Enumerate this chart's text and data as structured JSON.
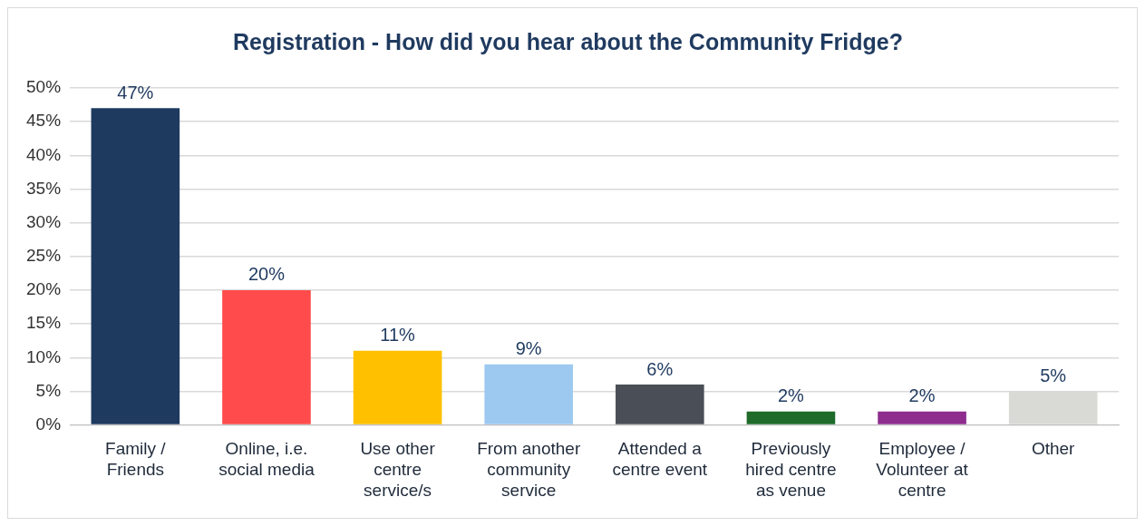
{
  "chart_data": {
    "type": "bar",
    "title": "Registration - How did you hear about the Community Fridge?",
    "categories": [
      "Family / Friends",
      "Online, i.e. social media",
      "Use other centre service/s",
      "From another community service",
      "Attended a centre event",
      "Previously hired centre as venue",
      "Employee / Volunteer at centre",
      "Other"
    ],
    "values": [
      47,
      20,
      11,
      9,
      6,
      2,
      2,
      5
    ],
    "value_labels": [
      "47%",
      "20%",
      "11%",
      "9%",
      "6%",
      "2%",
      "2%",
      "5%"
    ],
    "colors": [
      "#1f3a5f",
      "#ff4b4b",
      "#ffc000",
      "#9dc9f0",
      "#4a4f57",
      "#1e6b2a",
      "#8e2d8e",
      "#d9d9d6"
    ],
    "ylim": [
      0,
      50
    ],
    "yticks": [
      {
        "value": 0,
        "label": "0%"
      },
      {
        "value": 5,
        "label": "5%"
      },
      {
        "value": 10,
        "label": "10%"
      },
      {
        "value": 15,
        "label": "15%"
      },
      {
        "value": 20,
        "label": "20%"
      },
      {
        "value": 25,
        "label": "25%"
      },
      {
        "value": 30,
        "label": "30%"
      },
      {
        "value": 35,
        "label": "35%"
      },
      {
        "value": 40,
        "label": "40%"
      },
      {
        "value": 45,
        "label": "45%"
      },
      {
        "value": 50,
        "label": "50%"
      }
    ],
    "grid": "y",
    "legend": false
  }
}
